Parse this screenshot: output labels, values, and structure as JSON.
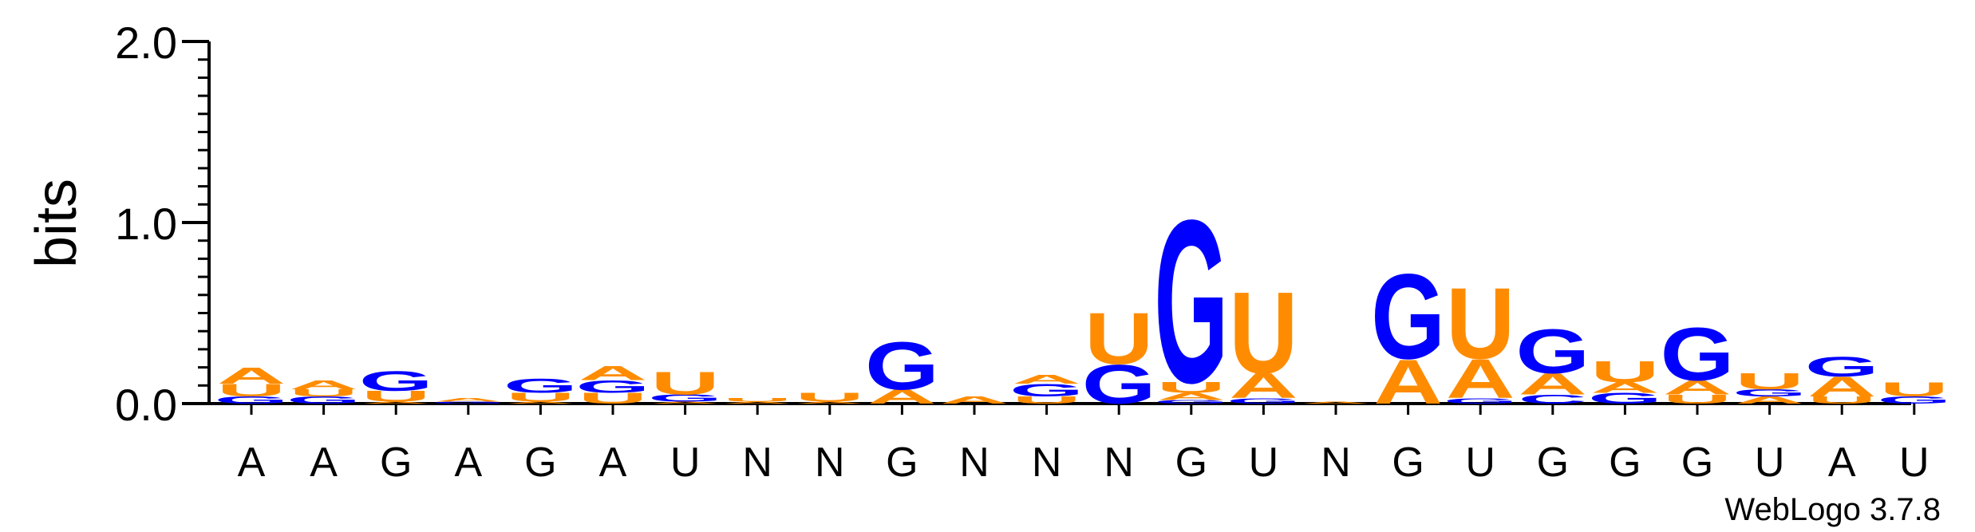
{
  "chart_data": {
    "type": "sequence-logo",
    "ylabel": "bits",
    "ylim": [
      0,
      2.0
    ],
    "yticks": [
      "0.0",
      "1.0",
      "2.0"
    ],
    "consensus": [
      "A",
      "A",
      "G",
      "A",
      "G",
      "A",
      "U",
      "N",
      "N",
      "G",
      "N",
      "N",
      "N",
      "G",
      "U",
      "N",
      "G",
      "U",
      "G",
      "G",
      "G",
      "U",
      "A",
      "U"
    ],
    "columns": [
      [
        {
          "base": "G",
          "bits": 0.04
        },
        {
          "base": "U",
          "bits": 0.07
        },
        {
          "base": "A",
          "bits": 0.09
        }
      ],
      [
        {
          "base": "G",
          "bits": 0.04
        },
        {
          "base": "U",
          "bits": 0.04
        },
        {
          "base": "A",
          "bits": 0.05
        }
      ],
      [
        {
          "base": "A",
          "bits": 0.01
        },
        {
          "base": "U",
          "bits": 0.06
        },
        {
          "base": "G",
          "bits": 0.11
        }
      ],
      [
        {
          "base": "G",
          "bits": 0.01
        },
        {
          "base": "A",
          "bits": 0.02
        }
      ],
      [
        {
          "base": "A",
          "bits": 0.01
        },
        {
          "base": "U",
          "bits": 0.05
        },
        {
          "base": "G",
          "bits": 0.08
        }
      ],
      [
        {
          "base": "U",
          "bits": 0.06
        },
        {
          "base": "G",
          "bits": 0.07
        },
        {
          "base": "A",
          "bits": 0.08
        }
      ],
      [
        {
          "base": "A",
          "bits": 0.01
        },
        {
          "base": "G",
          "bits": 0.04
        },
        {
          "base": "U",
          "bits": 0.13
        }
      ],
      [
        {
          "base": "A",
          "bits": 0.01
        },
        {
          "base": "U",
          "bits": 0.02
        }
      ],
      [
        {
          "base": "A",
          "bits": 0.01
        },
        {
          "base": "U",
          "bits": 0.05
        }
      ],
      [
        {
          "base": "A",
          "bits": 0.08
        },
        {
          "base": "G",
          "bits": 0.27
        }
      ],
      [
        {
          "base": "A",
          "bits": 0.04
        }
      ],
      [
        {
          "base": "U",
          "bits": 0.04
        },
        {
          "base": "G",
          "bits": 0.07
        },
        {
          "base": "A",
          "bits": 0.05
        }
      ],
      [
        {
          "base": "G",
          "bits": 0.22
        },
        {
          "base": "U",
          "bits": 0.29
        }
      ],
      [
        {
          "base": "G",
          "bits": 0.02
        },
        {
          "base": "A",
          "bits": 0.04
        },
        {
          "base": "U",
          "bits": 0.06
        },
        {
          "base": "G",
          "bits": 0.92
        }
      ],
      [
        {
          "base": "G",
          "bits": 0.03
        },
        {
          "base": "A",
          "bits": 0.14
        },
        {
          "base": "U",
          "bits": 0.46
        }
      ],
      [
        {
          "base": "A",
          "bits": 0.01
        }
      ],
      [
        {
          "base": "A",
          "bits": 0.25
        },
        {
          "base": "G",
          "bits": 0.48
        }
      ],
      [
        {
          "base": "G",
          "bits": 0.03
        },
        {
          "base": "A",
          "bits": 0.22
        },
        {
          "base": "U",
          "bits": 0.4
        }
      ],
      [
        {
          "base": "C",
          "bits": 0.05
        },
        {
          "base": "A",
          "bits": 0.12
        },
        {
          "base": "G",
          "bits": 0.25
        }
      ],
      [
        {
          "base": "G",
          "bits": 0.06
        },
        {
          "base": "A",
          "bits": 0.06
        },
        {
          "base": "U",
          "bits": 0.12
        }
      ],
      [
        {
          "base": "U",
          "bits": 0.05
        },
        {
          "base": "A",
          "bits": 0.08
        },
        {
          "base": "G",
          "bits": 0.3
        }
      ],
      [
        {
          "base": "A",
          "bits": 0.04
        },
        {
          "base": "G",
          "bits": 0.04
        },
        {
          "base": "U",
          "bits": 0.09
        }
      ],
      [
        {
          "base": "U",
          "bits": 0.04
        },
        {
          "base": "A",
          "bits": 0.11
        },
        {
          "base": "G",
          "bits": 0.11
        }
      ],
      [
        {
          "base": "G",
          "bits": 0.04
        },
        {
          "base": "U",
          "bits": 0.08
        }
      ]
    ],
    "colors": {
      "A": "#FF8C00",
      "U": "#FF8C00",
      "G": "#0000FF",
      "C": "#0000FF"
    }
  },
  "footer": {
    "version_label": "WebLogo 3.7.8"
  }
}
